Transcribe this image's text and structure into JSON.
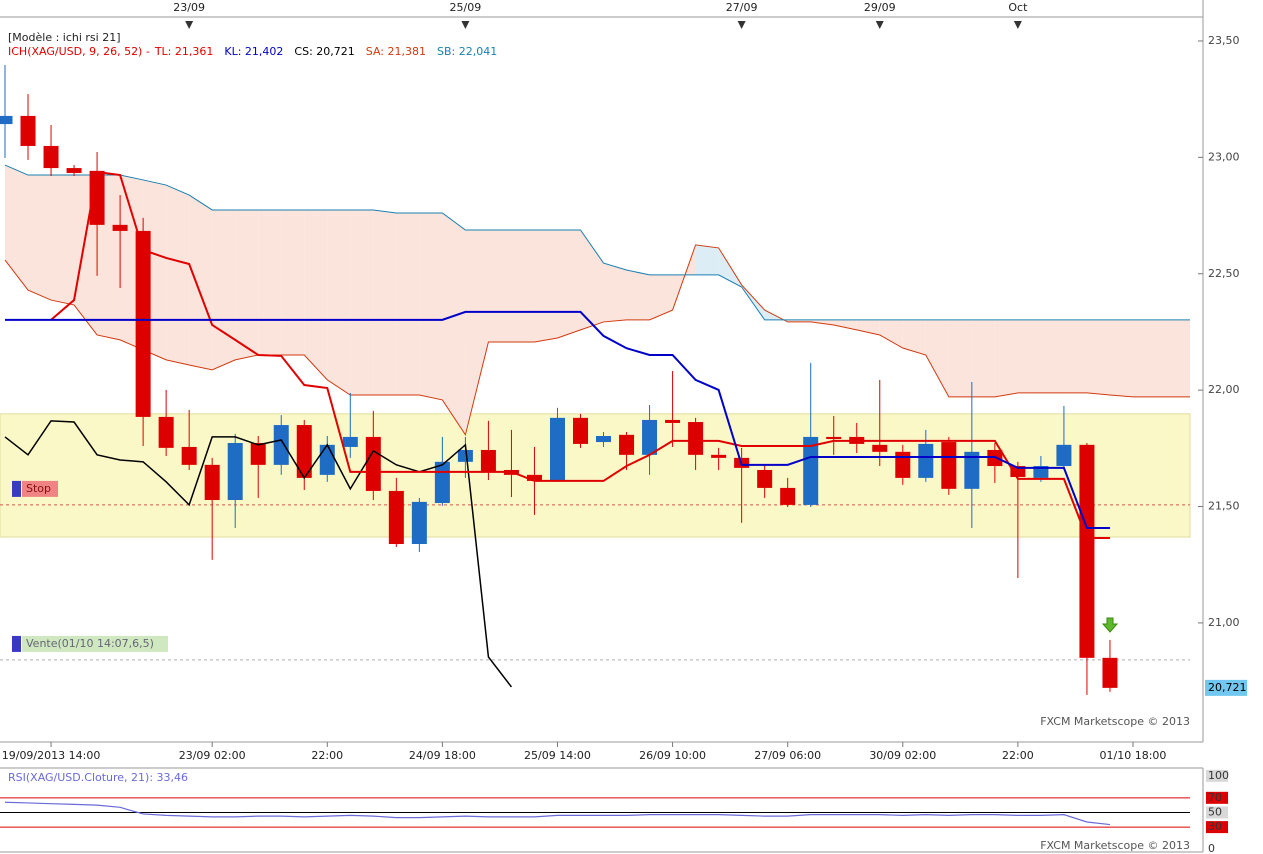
{
  "chart_data": [
    {
      "type": "candlestick",
      "model_label": "[Modèle : ichi rsi 21]",
      "indicator_label": "ICH(XAG/USD, 9, 26, 52) -",
      "indicator_label_color": "#e00000",
      "readouts": [
        {
          "text": "TL: 21,361",
          "color": "#e00000"
        },
        {
          "text": "KL: 21,402",
          "color": "#0000c8"
        },
        {
          "text": "CS: 20,721",
          "color": "#000000"
        },
        {
          "text": "SA: 21,381",
          "color": "#d03a10"
        },
        {
          "text": "SB: 22,041",
          "color": "#1a7fb0"
        }
      ],
      "categories": [
        null,
        null,
        "19/09/2013 14:00",
        null,
        null,
        null,
        null,
        null,
        null,
        "23/09 02:00",
        null,
        null,
        null,
        null,
        "22:00",
        null,
        null,
        null,
        null,
        "24/09 18:00",
        null,
        null,
        null,
        null,
        "25/09 14:00",
        null,
        null,
        null,
        null,
        "26/09 10:00",
        null,
        null,
        null,
        null,
        "27/09 06:00",
        null,
        null,
        null,
        null,
        "30/09 02:00",
        null,
        null,
        null,
        null,
        "22:00",
        null,
        null,
        null,
        null,
        "01/10 18:00"
      ],
      "top_categories": [
        null,
        null,
        null,
        null,
        null,
        null,
        null,
        null,
        "23/09",
        null,
        null,
        null,
        null,
        null,
        null,
        null,
        null,
        null,
        null,
        null,
        "25/09",
        null,
        null,
        null,
        null,
        null,
        null,
        null,
        null,
        null,
        null,
        null,
        "27/09",
        null,
        null,
        null,
        null,
        null,
        "29/09",
        null,
        null,
        null,
        null,
        null,
        "Oct",
        null,
        null,
        null,
        null,
        null
      ],
      "open": [
        23.143,
        23.178,
        23.049,
        22.954,
        22.942,
        22.71,
        22.684,
        21.885,
        21.756,
        21.679,
        21.528,
        21.773,
        21.679,
        21.85,
        21.636,
        21.756,
        21.799,
        21.567,
        21.339,
        21.515,
        21.692,
        21.743,
        21.657,
        21.636,
        21.614,
        21.881,
        21.777,
        21.808,
        21.722,
        21.872,
        21.863,
        21.722,
        21.709,
        21.657,
        21.58,
        21.507,
        21.799,
        21.799,
        21.765,
        21.735,
        21.623,
        21.777,
        21.576,
        21.743,
        21.674,
        21.623,
        21.674,
        21.765,
        20.85,
        null
      ],
      "high": [
        23.397,
        23.272,
        23.139,
        22.967,
        23.023,
        22.838,
        22.74,
        22.001,
        21.915,
        21.709,
        21.812,
        21.803,
        21.893,
        21.872,
        21.803,
        21.988,
        21.911,
        21.623,
        21.537,
        21.799,
        21.799,
        21.868,
        21.829,
        21.756,
        21.924,
        21.898,
        21.82,
        21.82,
        21.936,
        22.082,
        21.881,
        21.752,
        21.752,
        21.679,
        21.623,
        22.117,
        21.889,
        21.859,
        22.044,
        21.765,
        21.829,
        21.799,
        22.035,
        21.773,
        21.692,
        21.717,
        21.932,
        21.773,
        20.927,
        null
      ],
      "low": [
        22.997,
        22.989,
        22.92,
        22.92,
        22.491,
        22.439,
        21.76,
        21.717,
        21.657,
        21.271,
        21.408,
        21.537,
        21.636,
        21.571,
        21.606,
        21.709,
        21.528,
        21.326,
        21.305,
        21.503,
        21.623,
        21.614,
        21.541,
        21.464,
        21.606,
        21.752,
        21.756,
        21.657,
        21.636,
        21.756,
        21.657,
        21.657,
        21.43,
        21.537,
        21.498,
        21.498,
        21.722,
        21.73,
        21.674,
        21.593,
        21.606,
        21.55,
        21.408,
        21.601,
        21.193,
        21.606,
        21.657,
        20.691,
        20.704,
        null
      ],
      "close": [
        23.178,
        23.049,
        22.954,
        22.933,
        22.71,
        22.684,
        21.885,
        21.752,
        21.679,
        21.528,
        21.773,
        21.679,
        21.85,
        21.623,
        21.765,
        21.799,
        21.567,
        21.339,
        21.52,
        21.692,
        21.743,
        21.649,
        21.636,
        21.61,
        21.881,
        21.769,
        21.803,
        21.722,
        21.872,
        21.859,
        21.722,
        21.709,
        21.666,
        21.58,
        21.507,
        21.799,
        21.79,
        21.769,
        21.735,
        21.623,
        21.769,
        21.576,
        21.735,
        21.674,
        21.627,
        21.674,
        21.765,
        20.85,
        20.721,
        null
      ],
      "up_color": "#1e6cc4",
      "down_color": "#dd0000",
      "tenkan": {
        "color": "#e00000",
        "values": [
          null,
          null,
          22.302,
          22.387,
          22.937,
          22.924,
          22.602,
          22.568,
          22.542,
          22.28,
          22.216,
          22.151,
          22.147,
          22.022,
          22.009,
          21.649,
          21.649,
          21.649,
          21.649,
          21.649,
          21.649,
          21.649,
          21.649,
          21.61,
          21.61,
          21.61,
          21.61,
          21.674,
          21.722,
          21.782,
          21.782,
          21.782,
          21.76,
          21.76,
          21.76,
          21.76,
          21.782,
          21.782,
          21.782,
          21.782,
          21.782,
          21.782,
          21.782,
          21.782,
          21.619,
          21.619,
          21.619,
          21.365,
          21.365,
          null
        ]
      },
      "kijun": {
        "color": "#0000c8",
        "values": [
          22.302,
          22.302,
          22.302,
          22.302,
          22.302,
          22.302,
          22.302,
          22.302,
          22.302,
          22.302,
          22.302,
          22.302,
          22.302,
          22.302,
          22.302,
          22.302,
          22.302,
          22.302,
          22.302,
          22.302,
          22.336,
          22.336,
          22.336,
          22.336,
          22.336,
          22.336,
          22.233,
          22.18,
          22.151,
          22.151,
          22.044,
          22.001,
          21.679,
          21.679,
          21.679,
          21.713,
          21.713,
          21.713,
          21.713,
          21.713,
          21.713,
          21.713,
          21.713,
          21.713,
          21.666,
          21.666,
          21.666,
          21.408,
          21.408,
          null
        ]
      },
      "chikou": {
        "color": "#000000",
        "values": [
          21.799,
          21.722,
          21.868,
          21.863,
          21.722,
          21.7,
          21.692,
          21.606,
          21.507,
          21.799,
          21.799,
          21.765,
          21.786,
          21.623,
          21.765,
          21.576,
          21.739,
          21.679,
          21.649,
          21.679,
          21.765,
          20.854,
          20.725,
          null,
          null,
          null,
          null,
          null,
          null,
          null,
          null,
          null,
          null,
          null,
          null,
          null,
          null,
          null,
          null,
          null,
          null,
          null,
          null,
          null,
          null,
          null,
          null,
          null,
          null,
          null
        ]
      },
      "senkou_a": {
        "color": "#d03a10",
        "values": [
          22.559,
          22.43,
          22.387,
          22.366,
          22.237,
          22.216,
          22.173,
          22.13,
          22.108,
          22.087,
          22.13,
          22.151,
          22.151,
          22.151,
          22.044,
          21.979,
          21.979,
          21.979,
          21.979,
          21.958,
          21.808,
          22.207,
          22.207,
          22.207,
          22.224,
          22.259,
          22.293,
          22.302,
          22.302,
          22.344,
          22.624,
          22.611,
          22.452,
          22.344,
          22.293,
          22.293,
          22.28,
          22.259,
          22.237,
          22.181,
          22.151,
          21.971,
          21.971,
          21.971,
          21.988,
          21.988,
          21.988,
          21.988,
          21.979,
          21.971
        ]
      },
      "senkou_b": {
        "color": "#1a7fb0",
        "values": [
          22.967,
          22.924,
          22.924,
          22.924,
          22.924,
          22.924,
          22.903,
          22.881,
          22.838,
          22.774,
          22.774,
          22.774,
          22.774,
          22.774,
          22.774,
          22.774,
          22.774,
          22.761,
          22.761,
          22.761,
          22.688,
          22.688,
          22.688,
          22.688,
          22.688,
          22.688,
          22.546,
          22.516,
          22.495,
          22.495,
          22.495,
          22.495,
          22.443,
          22.302,
          22.302,
          22.302,
          22.302,
          22.302,
          22.302,
          22.302,
          22.302,
          22.302,
          22.302,
          22.302,
          22.302,
          22.302,
          22.302,
          22.302,
          22.302,
          22.302
        ]
      },
      "cloud_colors": {
        "bear": "#fbe4dc",
        "bull": "#dcedf6"
      },
      "zone": [
        21.369,
        21.898
      ],
      "zone_color": "#fbf8c8",
      "stop_level": 21.507,
      "stop_label": "Stop",
      "order_level": 20.841,
      "order_label": "Vente(01/10 14:07,6,5)",
      "last_price": {
        "value": 20.721,
        "label": "20,721"
      },
      "ylim": [
        20.54,
        23.676
      ],
      "yticks": [
        {
          "value": 21,
          "label": "21,00"
        },
        {
          "value": 21.5,
          "label": "21,50"
        },
        {
          "value": 22,
          "label": "22,00"
        },
        {
          "value": 22.5,
          "label": "22,50"
        },
        {
          "value": 23,
          "label": "23,00"
        },
        {
          "value": 23.5,
          "label": "23,50"
        }
      ],
      "watermark": "FXCM Marketscope © 2013"
    },
    {
      "type": "line",
      "title": "RSI(XAG/USD.Cloture, 21): 33,46",
      "color": "#6a6ad8",
      "values": [
        64,
        63,
        62,
        61,
        60,
        57,
        48,
        46,
        45,
        44,
        44,
        45,
        45,
        44,
        45,
        46,
        45,
        43,
        43,
        44,
        45,
        44,
        44,
        44,
        46,
        46,
        46,
        46,
        47,
        47,
        47,
        47,
        46,
        45,
        45,
        47,
        47,
        47,
        47,
        46,
        47,
        46,
        47,
        47,
        46,
        46,
        47,
        37,
        33.46,
        null
      ],
      "ylim": [
        -4,
        108
      ],
      "yticks": [
        0,
        30,
        50,
        70,
        100
      ],
      "tick_styles": [
        {
          "box": "none",
          "line": "none"
        },
        {
          "box": "#dd0000",
          "line": "#dd0000"
        },
        {
          "box": "#d8d8d8",
          "line": "#000000"
        },
        {
          "box": "#dd0000",
          "line": "#dd0000"
        },
        {
          "box": "#d8d8d8",
          "line": "none"
        }
      ],
      "watermark": "FXCM Marketscope © 2013"
    }
  ]
}
